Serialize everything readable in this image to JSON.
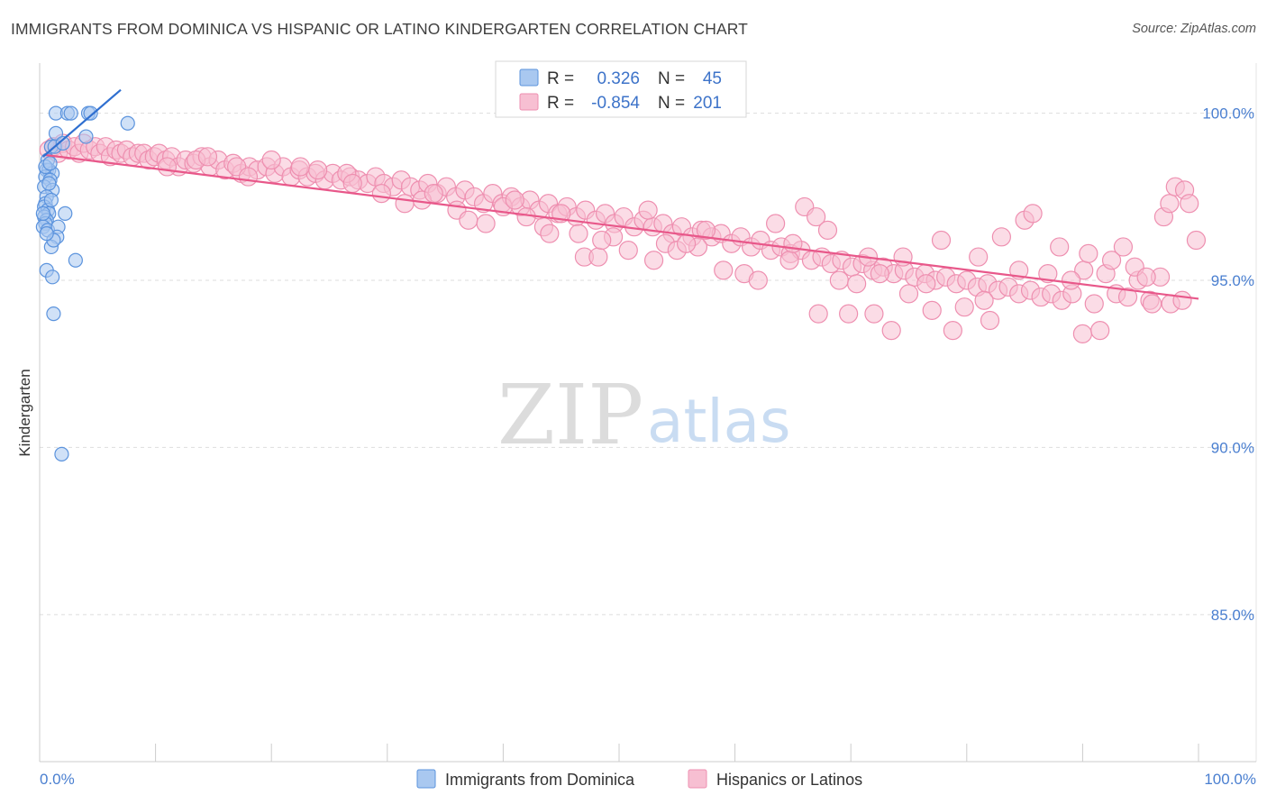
{
  "title": "IMMIGRANTS FROM DOMINICA VS HISPANIC OR LATINO KINDERGARTEN CORRELATION CHART",
  "source": "Source: ZipAtlas.com",
  "watermark": {
    "zip": "ZIP",
    "atlas": "atlas"
  },
  "colors": {
    "blue_fill": "#a9c8f0",
    "blue_stroke": "#5b93dd",
    "blue_line": "#2f6fd0",
    "pink_fill": "#f7bfd2",
    "pink_stroke": "#ee8fb0",
    "pink_line": "#e8588a",
    "grid": "#dddddd",
    "tick_text": "#4a7fd0"
  },
  "stats": {
    "row1": {
      "r_label": "R =",
      "r_value": "0.326",
      "n_label": "N =",
      "n_value": "45"
    },
    "row2": {
      "r_label": "R =",
      "r_value": "-0.854",
      "n_label": "N =",
      "n_value": "201"
    }
  },
  "chart_data": {
    "type": "scatter",
    "title": "IMMIGRANTS FROM DOMINICA VS HISPANIC OR LATINO KINDERGARTEN CORRELATION CHART",
    "xlabel": "",
    "ylabel": "Kindergarten",
    "xlim": [
      0,
      100
    ],
    "ylim": [
      80.6,
      101.5
    ],
    "x_tick_labels": [
      "0.0%",
      "100.0%"
    ],
    "y_ticks": [
      {
        "value": 100.0,
        "label": "100.0%"
      },
      {
        "value": 95.0,
        "label": "95.0%"
      },
      {
        "value": 90.0,
        "label": "90.0%"
      },
      {
        "value": 85.0,
        "label": "85.0%"
      }
    ],
    "legend_position": "bottom",
    "series": [
      {
        "name": "Immigrants from Dominica",
        "color": "#5b93dd",
        "r": 0.326,
        "n": 45,
        "trend": {
          "x0": 0.3,
          "y0": 98.7,
          "x1": 7.0,
          "y1": 100.7
        },
        "points": [
          [
            1.4,
            100.0
          ],
          [
            2.4,
            100.0
          ],
          [
            2.7,
            100.0
          ],
          [
            4.2,
            100.0
          ],
          [
            4.4,
            100.0
          ],
          [
            7.6,
            99.7
          ],
          [
            1.4,
            99.4
          ],
          [
            4.0,
            99.3
          ],
          [
            1.0,
            99.0
          ],
          [
            1.3,
            99.0
          ],
          [
            0.7,
            98.6
          ],
          [
            0.6,
            98.3
          ],
          [
            0.8,
            98.3
          ],
          [
            1.1,
            98.2
          ],
          [
            0.5,
            98.1
          ],
          [
            0.9,
            98.0
          ],
          [
            0.4,
            97.8
          ],
          [
            1.1,
            97.7
          ],
          [
            0.6,
            97.5
          ],
          [
            0.5,
            97.3
          ],
          [
            0.4,
            97.2
          ],
          [
            0.7,
            97.1
          ],
          [
            0.8,
            97.0
          ],
          [
            2.2,
            97.0
          ],
          [
            0.4,
            96.9
          ],
          [
            0.6,
            96.8
          ],
          [
            0.5,
            96.7
          ],
          [
            0.3,
            96.6
          ],
          [
            0.7,
            96.5
          ],
          [
            1.6,
            96.6
          ],
          [
            1.5,
            96.3
          ],
          [
            1.0,
            96.0
          ],
          [
            3.1,
            95.6
          ],
          [
            0.6,
            95.3
          ],
          [
            1.1,
            95.1
          ],
          [
            1.2,
            94.0
          ],
          [
            1.9,
            89.8
          ],
          [
            0.5,
            98.4
          ],
          [
            0.8,
            97.9
          ],
          [
            0.3,
            97.0
          ],
          [
            1.2,
            96.2
          ],
          [
            0.6,
            96.4
          ],
          [
            0.9,
            98.5
          ],
          [
            1.0,
            97.4
          ],
          [
            2.0,
            99.1
          ]
        ]
      },
      {
        "name": "Hispanics or Latinos",
        "color": "#ee8fb0",
        "r": -0.854,
        "n": 201,
        "trend": {
          "x0": 0.5,
          "y0": 98.75,
          "x1": 100.0,
          "y1": 94.45
        },
        "points": [
          [
            0.8,
            98.9
          ],
          [
            1.2,
            99.0
          ],
          [
            1.6,
            98.8
          ],
          [
            2.0,
            99.1
          ],
          [
            2.5,
            98.9
          ],
          [
            3.0,
            99.0
          ],
          [
            3.4,
            98.8
          ],
          [
            3.8,
            99.1
          ],
          [
            4.3,
            98.9
          ],
          [
            4.8,
            99.0
          ],
          [
            5.2,
            98.8
          ],
          [
            5.7,
            99.0
          ],
          [
            6.1,
            98.7
          ],
          [
            6.6,
            98.9
          ],
          [
            7.0,
            98.8
          ],
          [
            7.5,
            98.9
          ],
          [
            8.0,
            98.7
          ],
          [
            8.5,
            98.8
          ],
          [
            9.0,
            98.8
          ],
          [
            9.4,
            98.6
          ],
          [
            9.9,
            98.7
          ],
          [
            10.3,
            98.8
          ],
          [
            10.9,
            98.6
          ],
          [
            11.4,
            98.7
          ],
          [
            12.0,
            98.4
          ],
          [
            12.6,
            98.6
          ],
          [
            13.3,
            98.5
          ],
          [
            14.0,
            98.7
          ],
          [
            14.7,
            98.4
          ],
          [
            15.4,
            98.6
          ],
          [
            16.0,
            98.3
          ],
          [
            16.7,
            98.5
          ],
          [
            17.4,
            98.2
          ],
          [
            18.1,
            98.4
          ],
          [
            18.8,
            98.3
          ],
          [
            19.6,
            98.4
          ],
          [
            20.3,
            98.2
          ],
          [
            21.0,
            98.4
          ],
          [
            21.7,
            98.1
          ],
          [
            22.4,
            98.3
          ],
          [
            23.1,
            98.1
          ],
          [
            23.8,
            98.2
          ],
          [
            24.6,
            98.0
          ],
          [
            25.3,
            98.2
          ],
          [
            26.0,
            98.0
          ],
          [
            26.8,
            98.1
          ],
          [
            27.5,
            98.0
          ],
          [
            28.3,
            97.9
          ],
          [
            29.0,
            98.1
          ],
          [
            29.7,
            97.9
          ],
          [
            30.5,
            97.8
          ],
          [
            31.2,
            98.0
          ],
          [
            32.0,
            97.8
          ],
          [
            32.8,
            97.7
          ],
          [
            33.5,
            97.9
          ],
          [
            34.3,
            97.6
          ],
          [
            35.1,
            97.8
          ],
          [
            35.9,
            97.5
          ],
          [
            36.7,
            97.7
          ],
          [
            37.5,
            97.5
          ],
          [
            38.3,
            97.3
          ],
          [
            39.1,
            97.6
          ],
          [
            39.9,
            97.3
          ],
          [
            40.7,
            97.5
          ],
          [
            41.5,
            97.2
          ],
          [
            42.3,
            97.4
          ],
          [
            43.1,
            97.1
          ],
          [
            43.9,
            97.3
          ],
          [
            44.7,
            97.0
          ],
          [
            45.5,
            97.2
          ],
          [
            46.3,
            96.9
          ],
          [
            47.1,
            97.1
          ],
          [
            48.0,
            96.8
          ],
          [
            48.8,
            97.0
          ],
          [
            49.6,
            96.7
          ],
          [
            50.4,
            96.9
          ],
          [
            51.3,
            96.6
          ],
          [
            52.1,
            96.8
          ],
          [
            52.9,
            96.6
          ],
          [
            53.8,
            96.7
          ],
          [
            54.6,
            96.4
          ],
          [
            55.4,
            96.6
          ],
          [
            56.3,
            96.3
          ],
          [
            57.1,
            96.5
          ],
          [
            58.0,
            96.3
          ],
          [
            58.8,
            96.4
          ],
          [
            59.7,
            96.1
          ],
          [
            60.5,
            96.3
          ],
          [
            61.4,
            96.0
          ],
          [
            62.2,
            96.2
          ],
          [
            63.1,
            95.9
          ],
          [
            64.0,
            96.0
          ],
          [
            64.8,
            95.8
          ],
          [
            65.7,
            95.9
          ],
          [
            66.6,
            95.6
          ],
          [
            67.5,
            95.7
          ],
          [
            68.3,
            95.5
          ],
          [
            69.2,
            95.6
          ],
          [
            70.1,
            95.4
          ],
          [
            71.0,
            95.5
          ],
          [
            71.9,
            95.3
          ],
          [
            72.8,
            95.4
          ],
          [
            73.7,
            95.2
          ],
          [
            74.6,
            95.3
          ],
          [
            75.5,
            95.1
          ],
          [
            76.4,
            95.2
          ],
          [
            77.3,
            95.0
          ],
          [
            78.2,
            95.1
          ],
          [
            79.1,
            94.9
          ],
          [
            80.0,
            95.0
          ],
          [
            80.9,
            94.8
          ],
          [
            81.8,
            94.9
          ],
          [
            82.7,
            94.7
          ],
          [
            83.6,
            94.8
          ],
          [
            84.5,
            94.6
          ],
          [
            85.5,
            94.7
          ],
          [
            86.4,
            94.5
          ],
          [
            87.3,
            94.6
          ],
          [
            88.2,
            94.4
          ],
          [
            89.1,
            94.6
          ],
          [
            90.1,
            95.3
          ],
          [
            91.0,
            94.3
          ],
          [
            92.0,
            95.2
          ],
          [
            92.9,
            94.6
          ],
          [
            93.9,
            94.5
          ],
          [
            94.8,
            95.0
          ],
          [
            95.8,
            94.4
          ],
          [
            96.7,
            95.1
          ],
          [
            97.6,
            94.3
          ],
          [
            98.6,
            94.4
          ],
          [
            11.0,
            98.4
          ],
          [
            13.5,
            98.6
          ],
          [
            17.0,
            98.4
          ],
          [
            20.0,
            98.6
          ],
          [
            24.0,
            98.3
          ],
          [
            26.5,
            98.2
          ],
          [
            29.5,
            97.6
          ],
          [
            31.5,
            97.3
          ],
          [
            33.0,
            97.4
          ],
          [
            36.0,
            97.1
          ],
          [
            37.0,
            96.8
          ],
          [
            38.5,
            96.7
          ],
          [
            40.0,
            97.2
          ],
          [
            42.0,
            96.9
          ],
          [
            43.5,
            96.6
          ],
          [
            44.0,
            96.4
          ],
          [
            45.0,
            97.0
          ],
          [
            46.5,
            96.4
          ],
          [
            47.0,
            95.7
          ],
          [
            48.2,
            95.7
          ],
          [
            49.5,
            96.3
          ],
          [
            50.8,
            95.9
          ],
          [
            52.5,
            97.1
          ],
          [
            53.0,
            95.6
          ],
          [
            54.0,
            96.1
          ],
          [
            55.0,
            95.9
          ],
          [
            56.8,
            96.0
          ],
          [
            57.5,
            96.5
          ],
          [
            59.0,
            95.3
          ],
          [
            60.8,
            95.2
          ],
          [
            62.0,
            95.0
          ],
          [
            63.5,
            96.7
          ],
          [
            64.7,
            95.6
          ],
          [
            66.0,
            97.2
          ],
          [
            67.0,
            96.9
          ],
          [
            68.0,
            96.5
          ],
          [
            69.0,
            95.0
          ],
          [
            70.5,
            94.9
          ],
          [
            71.5,
            95.7
          ],
          [
            72.5,
            95.2
          ],
          [
            73.5,
            93.5
          ],
          [
            74.5,
            95.7
          ],
          [
            75.0,
            94.6
          ],
          [
            76.5,
            94.9
          ],
          [
            77.0,
            94.1
          ],
          [
            77.8,
            96.2
          ],
          [
            78.8,
            93.5
          ],
          [
            79.8,
            94.2
          ],
          [
            81.0,
            95.7
          ],
          [
            81.5,
            94.4
          ],
          [
            82.0,
            93.8
          ],
          [
            83.0,
            96.3
          ],
          [
            84.5,
            95.3
          ],
          [
            85.0,
            96.8
          ],
          [
            85.7,
            97.0
          ],
          [
            87.0,
            95.2
          ],
          [
            88.0,
            96.0
          ],
          [
            89.0,
            95.0
          ],
          [
            90.0,
            93.4
          ],
          [
            90.5,
            95.8
          ],
          [
            91.5,
            93.5
          ],
          [
            92.5,
            95.6
          ],
          [
            93.5,
            96.0
          ],
          [
            94.5,
            95.4
          ],
          [
            95.5,
            95.1
          ],
          [
            96.0,
            94.3
          ],
          [
            97.0,
            96.9
          ],
          [
            97.5,
            97.3
          ],
          [
            98.0,
            97.8
          ],
          [
            98.8,
            97.7
          ],
          [
            99.2,
            97.3
          ],
          [
            99.8,
            96.2
          ],
          [
            14.5,
            98.7
          ],
          [
            18.0,
            98.1
          ],
          [
            22.5,
            98.4
          ],
          [
            27.0,
            97.9
          ],
          [
            34.0,
            97.6
          ],
          [
            41.0,
            97.4
          ],
          [
            48.5,
            96.2
          ],
          [
            55.8,
            96.1
          ],
          [
            65.0,
            96.1
          ],
          [
            67.2,
            94.0
          ],
          [
            69.8,
            94.0
          ],
          [
            72.0,
            94.0
          ]
        ]
      }
    ]
  },
  "legend": {
    "item1": "Immigrants from Dominica",
    "item2": "Hispanics or Latinos"
  }
}
